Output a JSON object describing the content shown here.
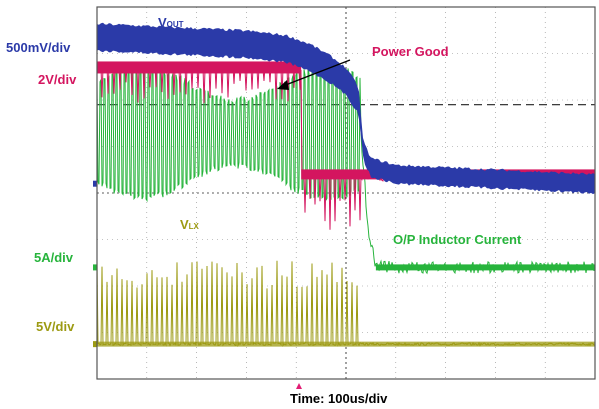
{
  "colors": {
    "vout": "#2b3aa8",
    "power_good": "#d4155f",
    "inductor": "#27b43c",
    "vlx": "#9c9a12",
    "grid": "#8a8a8a",
    "frame": "#555555"
  },
  "chart_data": {
    "type": "line",
    "title": "",
    "xlabel": "Time: 100us/div",
    "ylabel": "",
    "grid": true,
    "divisions": {
      "x": 10,
      "y": 8
    },
    "x_unit": "div",
    "y_unit": "div",
    "xlim": [
      0,
      10
    ],
    "ylim": [
      -4,
      4
    ],
    "trigger_marker_x": 4.1,
    "annotations": [
      {
        "text": "Power Good",
        "x": 6.3,
        "y": 3.4
      },
      {
        "text": "O/P Inductor Current",
        "x": 6.6,
        "y": -0.85
      }
    ],
    "series": [
      {
        "name": "VOUT",
        "scale_label": "500mV/div",
        "x": [
          0,
          1,
          2,
          3,
          3.8,
          4.3,
          4.7,
          5.0,
          5.25,
          5.35,
          5.5,
          6,
          7,
          8,
          9,
          10
        ],
        "y": [
          3.35,
          3.3,
          3.25,
          3.2,
          3.1,
          2.9,
          2.65,
          2.4,
          2.0,
          0.9,
          0.55,
          0.4,
          0.35,
          0.3,
          0.25,
          0.2
        ]
      },
      {
        "name": "Power Good",
        "scale_label": "2V/div",
        "x": [
          0,
          2,
          4.1,
          4.1,
          5.3,
          6,
          8,
          10
        ],
        "y": [
          2.7,
          2.7,
          2.7,
          0.42,
          0.35,
          0.3,
          0.28,
          0.25
        ]
      },
      {
        "name": "O/P Inductor Current",
        "scale_label": "5A/div",
        "x": [
          0,
          5.3,
          5.45,
          5.6,
          6,
          8,
          10
        ],
        "y": [
          1.3,
          1.3,
          -0.9,
          -1.55,
          -1.6,
          -1.6,
          -1.6
        ]
      },
      {
        "name": "VLX",
        "scale_label": "5V/div",
        "x": [
          0,
          10
        ],
        "y": [
          -3.25,
          -3.25
        ]
      }
    ]
  }
}
